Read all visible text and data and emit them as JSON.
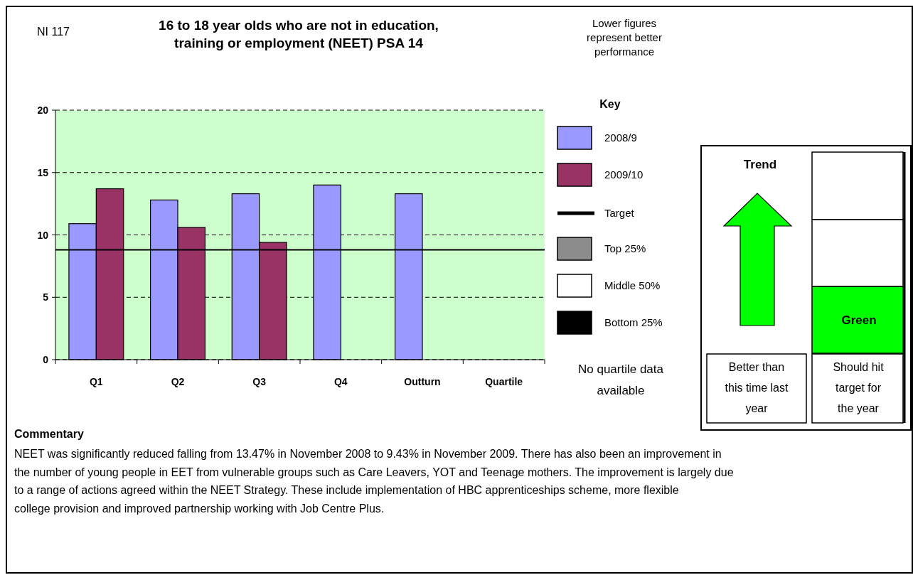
{
  "chart_data": {
    "type": "bar",
    "title": "16 to 18 year olds who are not in education, training or employment (NEET) PSA 14",
    "categories": [
      "Q1",
      "Q2",
      "Q3",
      "Q4",
      "Outturn",
      "Quartile"
    ],
    "series": [
      {
        "name": "2008/9",
        "color": "#9999ff",
        "values": [
          10.9,
          12.8,
          13.3,
          14.0,
          13.3,
          null
        ]
      },
      {
        "name": "2009/10",
        "color": "#993366",
        "values": [
          13.7,
          10.6,
          9.4,
          null,
          null,
          null
        ]
      },
      {
        "name": "Top 25%",
        "color": "#8c8c8c",
        "values": [
          null,
          null,
          null,
          null,
          null,
          null
        ]
      },
      {
        "name": "Middle 50%",
        "color": "#ffffff",
        "values": [
          null,
          null,
          null,
          null,
          null,
          null
        ]
      },
      {
        "name": "Bottom 25%",
        "color": "#000000",
        "values": [
          null,
          null,
          null,
          null,
          null,
          null
        ]
      }
    ],
    "ylim": [
      0,
      20
    ],
    "yticks": [
      0,
      5,
      10,
      15,
      20
    ],
    "grid": "y",
    "legend": "right",
    "ref_lines": [
      {
        "axis": "y",
        "value": 8.8,
        "label": "Target",
        "color": "#000000"
      }
    ],
    "legend_title": "Key",
    "annotations": [
      "NI 117",
      "Lower figures represent better performance",
      "No quartile data available",
      "Trend",
      "Green",
      "Better than this time last year",
      "Should hit target for the year",
      "Commentary",
      "NEET was significantly reduced falling from 13.47% in November 2008 to 9.43% in November 2009.  There has also been an improvement in the number of young people in EET from vulnerable groups such as Care Leavers, YOT and Teenage mothers.   The improvement is largely due to a range of actions agreed within the NEET Strategy.  These include implementation of HBC apprenticeships scheme, more flexible college provision and improved partnership working with Job Centre Plus."
    ]
  }
}
